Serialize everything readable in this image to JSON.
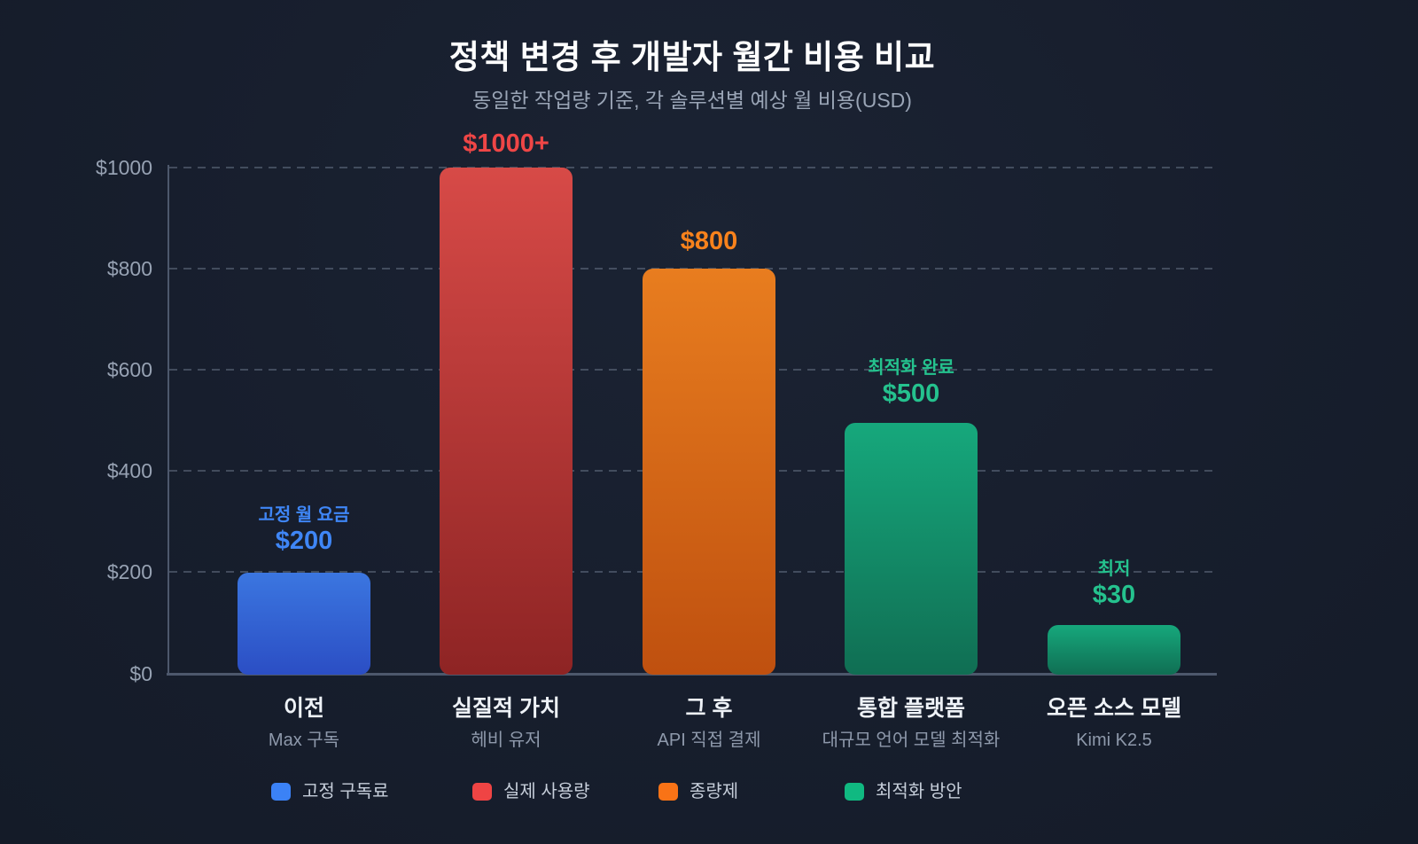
{
  "title": "정책 변경 후 개발자 월간 비용 비교",
  "subtitle": "동일한 작업량 기준, 각 솔루션별 예상 월 비용(USD)",
  "y_axis": {
    "ticks": [
      "$1000",
      "$800",
      "$600",
      "$400",
      "$200",
      "$0"
    ]
  },
  "bars": [
    {
      "caption": "고정 월 요금",
      "value_label": "$200",
      "category": "이전",
      "subcategory": "Max 구독",
      "color": "#3b82f6"
    },
    {
      "caption": "",
      "value_label": "$1000+",
      "category": "실질적 가치",
      "subcategory": "헤비 유저",
      "color": "#ef4444"
    },
    {
      "caption": "",
      "value_label": "$800",
      "category": "그 후",
      "subcategory": "API 직접 결제",
      "color": "#f97316"
    },
    {
      "caption": "최적화 완료",
      "value_label": "$500",
      "category": "통합 플랫폼",
      "subcategory": "대규모 언어 모델 최적화",
      "color": "#10b981"
    },
    {
      "caption": "최저",
      "value_label": "$30",
      "category": "오픈 소스 모델",
      "subcategory": "Kimi K2.5",
      "color": "#10b981"
    }
  ],
  "legend": [
    {
      "label": "고정 구독료",
      "color": "#3b82f6"
    },
    {
      "label": "실제 사용량",
      "color": "#ef4444"
    },
    {
      "label": "종량제",
      "color": "#f97316"
    },
    {
      "label": "최적화 방안",
      "color": "#10b981"
    }
  ],
  "chart_data": {
    "type": "bar",
    "title": "정책 변경 후 개발자 월간 비용 비교",
    "subtitle": "동일한 작업량 기준, 각 솔루션별 예상 월 비용(USD)",
    "categories": [
      "이전",
      "실질적 가치",
      "그 후",
      "통합 플랫폼",
      "오픈 소스 모델"
    ],
    "category_subtitles": [
      "Max 구독",
      "헤비 유저",
      "API 직접 결제",
      "대규모 언어 모델 최적화",
      "Kimi K2.5"
    ],
    "values": [
      200,
      1000,
      800,
      500,
      30
    ],
    "value_labels": [
      "$200",
      "$1000+",
      "$800",
      "$500",
      "$30"
    ],
    "bar_annotations": [
      "고정 월 요금",
      "",
      "",
      "최적화 완료",
      "최저"
    ],
    "series_colors": [
      "#3b82f6",
      "#ef4444",
      "#f97316",
      "#10b981",
      "#10b981"
    ],
    "legend_entries": [
      "고정 구독료",
      "실제 사용량",
      "종량제",
      "최적화 방안"
    ],
    "legend_position": "bottom",
    "ylim": [
      0,
      1000
    ],
    "y_ticks": [
      0,
      200,
      400,
      600,
      800,
      1000
    ],
    "grid": true,
    "currency": "USD"
  }
}
